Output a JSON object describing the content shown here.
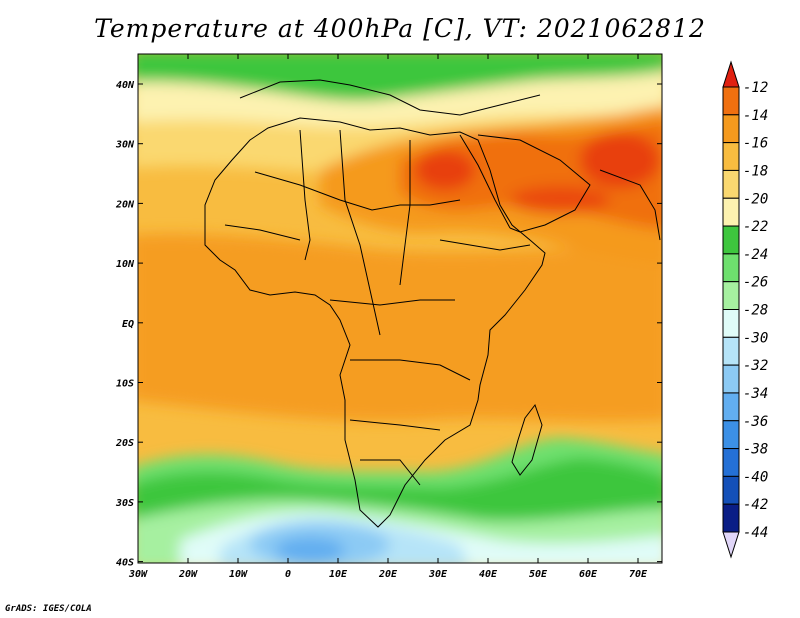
{
  "title": "Temperature at 400hPa [C], VT: 2021062812",
  "credit": "GrADS: IGES/COLA",
  "lat_ticks": [
    "40N",
    "30N",
    "20N",
    "10N",
    "EQ",
    "10S",
    "20S",
    "30S",
    "40S"
  ],
  "lon_ticks": [
    "30W",
    "20W",
    "10W",
    "0",
    "10E",
    "20E",
    "30E",
    "40E",
    "50E",
    "60E",
    "70E"
  ],
  "colorbar": {
    "labels": [
      "-12",
      "-14",
      "-16",
      "-18",
      "-20",
      "-22",
      "-24",
      "-26",
      "-28",
      "-30",
      "-32",
      "-34",
      "-36",
      "-38",
      "-40",
      "-42",
      "-44"
    ],
    "colors": [
      "#e8400c",
      "#f07010",
      "#f59a1e",
      "#f8bc40",
      "#fad870",
      "#fdf2b0",
      "#3ec63e",
      "#6ee06e",
      "#a6f0a0",
      "#e0fcf8",
      "#b6e4f8",
      "#8ccaf4",
      "#62aef0",
      "#3c90e6",
      "#2470d6",
      "#1450b8",
      "#0a1e86"
    ],
    "top_arrow_color": "#e02010",
    "bottom_arrow_color": "#e0d6f8"
  },
  "map": {
    "variable": "Temperature",
    "level": "400hPa",
    "units": "C",
    "valid_time": "2021062812",
    "lon_range": [
      "30W",
      "75E"
    ],
    "lat_range": [
      "40S",
      "45N"
    ]
  }
}
